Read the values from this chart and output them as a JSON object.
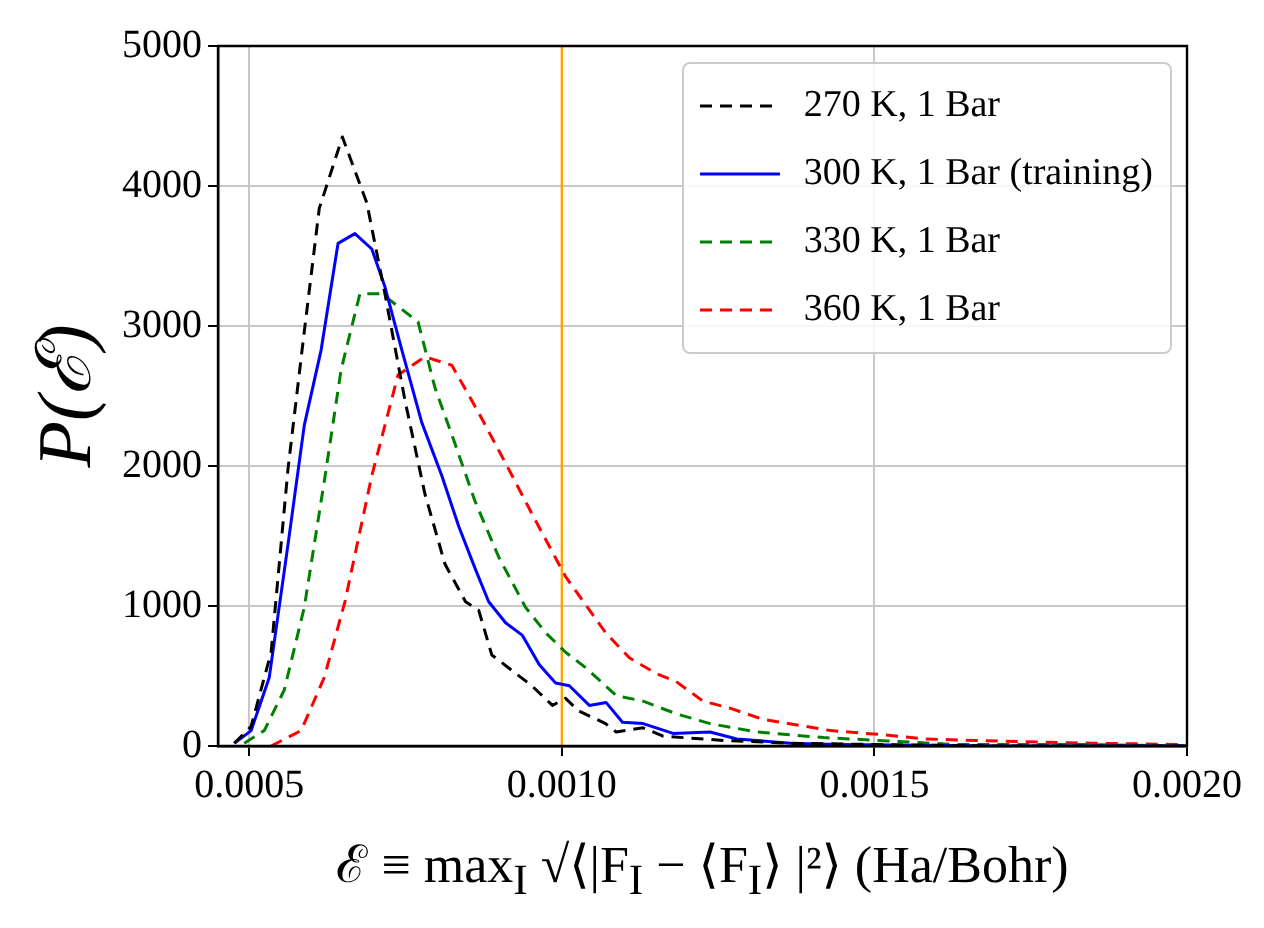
{
  "chart_data": {
    "type": "line",
    "xlabel": "ℰ ≡ max$_{I}$ √⟨|F$_{I}$ − ⟨F$_{I}$⟩ |²⟩ (Ha/Bohr)",
    "ylabel": "P(ℰ)",
    "xlim": [
      0.00045,
      0.002
    ],
    "xticks": [
      0.0005,
      {
        "value": 0.001,
        "label": "0.0010"
      },
      0.0015,
      {
        "value": 0.002,
        "label": "0.0020"
      }
    ],
    "ylim": [
      0,
      5000
    ],
    "yticks": [
      0,
      1000,
      2000,
      3000,
      4000,
      5000
    ],
    "grid": true,
    "legend": "top right",
    "marker": "none",
    "ref_lines": [
      {
        "axis": "x",
        "value": 0.001,
        "color": "#ffa500",
        "line_style": "solid"
      }
    ],
    "series": [
      {
        "name": "270 K, 1 Bar",
        "color": "#000000",
        "line_style": "dashed",
        "x": [
          0.000476,
          0.000503,
          0.000535,
          0.000562,
          0.000588,
          0.000612,
          0.000649,
          0.000688,
          0.000717,
          0.000749,
          0.000781,
          0.000813,
          0.000846,
          0.000867,
          0.000888,
          0.00092,
          0.000952,
          0.000985,
          0.001006,
          0.001027,
          0.00107,
          0.001087,
          0.00113,
          0.001162,
          0.001258,
          0.001366,
          0.001505,
          0.0017,
          0.002
        ],
        "values": [
          20,
          140,
          670,
          1980,
          2960,
          3840,
          4350,
          3880,
          3230,
          2470,
          1800,
          1300,
          1030,
          970,
          650,
          540,
          430,
          290,
          340,
          250,
          160,
          100,
          130,
          70,
          40,
          20,
          10,
          0,
          0
        ]
      },
      {
        "name": "300 K, 1 Bar (training)",
        "color": "#0000ff",
        "line_style": "solid",
        "x": [
          0.000476,
          0.000503,
          0.000532,
          0.000562,
          0.000588,
          0.000615,
          0.000642,
          0.000669,
          0.000696,
          0.000717,
          0.000744,
          0.000776,
          0.000808,
          0.000835,
          0.000862,
          0.000883,
          0.00091,
          0.000937,
          0.000964,
          0.00099,
          0.001012,
          0.001044,
          0.001071,
          0.001097,
          0.00113,
          0.001178,
          0.001237,
          0.00128,
          0.001366,
          0.00144,
          0.0017,
          0.002
        ],
        "values": [
          20,
          110,
          490,
          1440,
          2290,
          2830,
          3590,
          3660,
          3550,
          3280,
          2830,
          2310,
          1930,
          1570,
          1260,
          1030,
          880,
          790,
          580,
          450,
          430,
          290,
          310,
          170,
          160,
          90,
          100,
          50,
          20,
          10,
          0,
          0
        ]
      },
      {
        "name": "330 K, 1 Bar",
        "color": "#008000",
        "line_style": "dashed",
        "x": [
          0.000492,
          0.000524,
          0.000556,
          0.000588,
          0.00062,
          0.000647,
          0.000677,
          0.000712,
          0.000738,
          0.00077,
          0.000797,
          0.000829,
          0.000861,
          0.000899,
          0.000942,
          0.000974,
          0.001006,
          0.001038,
          0.00107,
          0.001087,
          0.00113,
          0.001183,
          0.001237,
          0.001312,
          0.001419,
          0.001505,
          0.001633,
          0.00185,
          0.002
        ],
        "values": [
          20,
          110,
          400,
          990,
          1890,
          2690,
          3230,
          3230,
          3140,
          3030,
          2560,
          2160,
          1750,
          1350,
          990,
          810,
          670,
          560,
          430,
          360,
          320,
          230,
          160,
          100,
          60,
          40,
          10,
          10,
          0
        ]
      },
      {
        "name": "360 K, 1 Bar",
        "color": "#ff0000",
        "line_style": "dashed",
        "x": [
          0.000535,
          0.000583,
          0.00062,
          0.000653,
          0.000696,
          0.000738,
          0.000781,
          0.000824,
          0.000867,
          0.00091,
          0.000952,
          0.001006,
          0.00107,
          0.001108,
          0.00115,
          0.001183,
          0.001226,
          0.001269,
          0.001322,
          0.001376,
          0.00143,
          0.001515,
          0.00158,
          0.00174,
          0.001848,
          0.002
        ],
        "values": [
          0,
          110,
          490,
          1030,
          1930,
          2650,
          2780,
          2720,
          2380,
          2020,
          1660,
          1210,
          810,
          630,
          520,
          460,
          320,
          270,
          190,
          150,
          110,
          80,
          50,
          30,
          20,
          10
        ]
      }
    ]
  }
}
